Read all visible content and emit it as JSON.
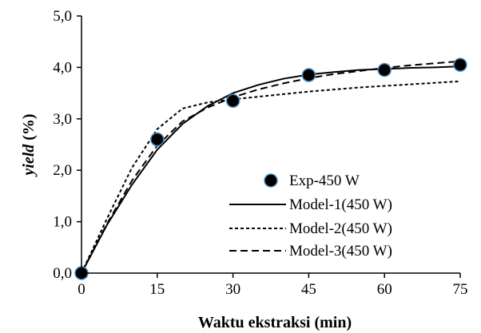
{
  "chart_data": {
    "type": "line",
    "xlabel": "Waktu ekstraksi (min)",
    "ylabel_italic": "yield",
    "ylabel_unit": " (%)",
    "xlim": [
      0,
      75
    ],
    "ylim": [
      0,
      5
    ],
    "xticks": [
      0,
      15,
      30,
      45,
      60,
      75
    ],
    "yticks": [
      0,
      1,
      2,
      3,
      4,
      5
    ],
    "xtick_labels": [
      "0",
      "15",
      "30",
      "45",
      "60",
      "75"
    ],
    "ytick_labels": [
      "0,0",
      "1,0",
      "2,0",
      "3,0",
      "4,0",
      "5,0"
    ],
    "grid": false,
    "legend_position": "bottom-right",
    "series": [
      {
        "name": "Exp-450 W",
        "kind": "scatter",
        "marker": "circle",
        "color": "#000000",
        "edge_color": "#4a90c8",
        "x": [
          0,
          15,
          30,
          45,
          60,
          75
        ],
        "y": [
          0.0,
          2.6,
          3.35,
          3.85,
          3.95,
          4.05
        ]
      },
      {
        "name": "Model-1(450 W)",
        "kind": "line",
        "dash": "solid",
        "color": "#000000",
        "x": [
          0,
          5,
          10,
          15,
          20,
          25,
          30,
          35,
          40,
          45,
          50,
          55,
          60,
          65,
          70,
          75
        ],
        "y": [
          0.0,
          0.93,
          1.72,
          2.4,
          2.9,
          3.25,
          3.5,
          3.66,
          3.78,
          3.86,
          3.91,
          3.95,
          3.97,
          3.99,
          4.0,
          4.02
        ]
      },
      {
        "name": "Model-2(450 W)",
        "kind": "line",
        "dash": "dotted",
        "color": "#000000",
        "x": [
          0,
          5,
          10,
          15,
          20,
          25,
          30,
          35,
          40,
          45,
          50,
          55,
          60,
          65,
          70,
          75
        ],
        "y": [
          0.0,
          1.05,
          2.05,
          2.8,
          3.2,
          3.32,
          3.38,
          3.43,
          3.48,
          3.53,
          3.57,
          3.61,
          3.64,
          3.67,
          3.7,
          3.73
        ]
      },
      {
        "name": "Model-3(450 W)",
        "kind": "line",
        "dash": "dashed",
        "color": "#000000",
        "x": [
          0,
          5,
          10,
          15,
          20,
          25,
          30,
          35,
          40,
          45,
          50,
          55,
          60,
          65,
          70,
          75
        ],
        "y": [
          0.0,
          0.95,
          1.8,
          2.48,
          2.95,
          3.22,
          3.42,
          3.57,
          3.69,
          3.79,
          3.87,
          3.93,
          3.99,
          4.04,
          4.08,
          4.12
        ]
      }
    ]
  }
}
